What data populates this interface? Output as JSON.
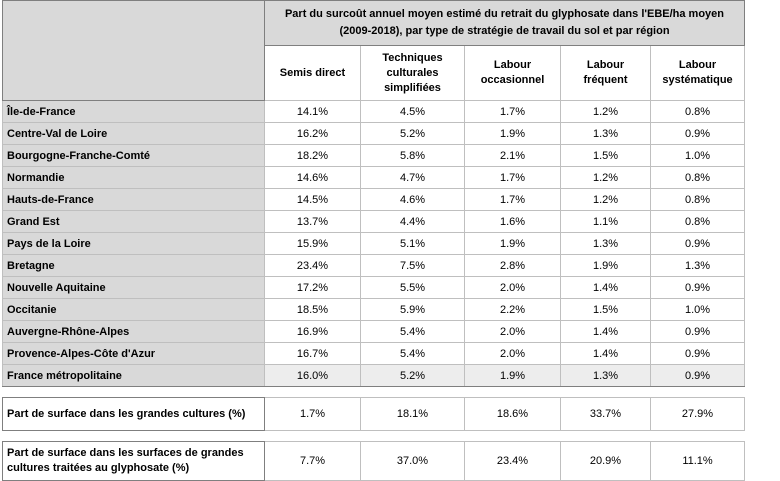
{
  "table": {
    "title": "Part du surcoût annuel moyen estimé du retrait du glyphosate dans l'EBE/ha moyen (2009-2018), par type de stratégie de travail du sol et par région",
    "columns": [
      "Semis direct",
      "Techniques culturales simplifiées",
      "Labour occasionnel",
      "Labour fréquent",
      "Labour systématique"
    ],
    "rows": [
      {
        "label": "Île-de-France",
        "values": [
          "14.1%",
          "4.5%",
          "1.7%",
          "1.2%",
          "0.8%"
        ]
      },
      {
        "label": "Centre-Val de Loire",
        "values": [
          "16.2%",
          "5.2%",
          "1.9%",
          "1.3%",
          "0.9%"
        ]
      },
      {
        "label": "Bourgogne-Franche-Comté",
        "values": [
          "18.2%",
          "5.8%",
          "2.1%",
          "1.5%",
          "1.0%"
        ]
      },
      {
        "label": "Normandie",
        "values": [
          "14.6%",
          "4.7%",
          "1.7%",
          "1.2%",
          "0.8%"
        ]
      },
      {
        "label": "Hauts-de-France",
        "values": [
          "14.5%",
          "4.6%",
          "1.7%",
          "1.2%",
          "0.8%"
        ]
      },
      {
        "label": "Grand Est",
        "values": [
          "13.7%",
          "4.4%",
          "1.6%",
          "1.1%",
          "0.8%"
        ]
      },
      {
        "label": "Pays de la Loire",
        "values": [
          "15.9%",
          "5.1%",
          "1.9%",
          "1.3%",
          "0.9%"
        ]
      },
      {
        "label": "Bretagne",
        "values": [
          "23.4%",
          "7.5%",
          "2.8%",
          "1.9%",
          "1.3%"
        ]
      },
      {
        "label": "Nouvelle Aquitaine",
        "values": [
          "17.2%",
          "5.5%",
          "2.0%",
          "1.4%",
          "0.9%"
        ]
      },
      {
        "label": "Occitanie",
        "values": [
          "18.5%",
          "5.9%",
          "2.2%",
          "1.5%",
          "1.0%"
        ]
      },
      {
        "label": "Auvergne-Rhône-Alpes",
        "values": [
          "16.9%",
          "5.4%",
          "2.0%",
          "1.4%",
          "0.9%"
        ]
      },
      {
        "label": "Provence-Alpes-Côte d'Azur",
        "values": [
          "16.7%",
          "5.4%",
          "2.0%",
          "1.4%",
          "0.9%"
        ]
      }
    ],
    "france": {
      "label": "France métropolitaine",
      "values": [
        "16.0%",
        "5.2%",
        "1.9%",
        "1.3%",
        "0.9%"
      ]
    },
    "footer_rows": [
      {
        "label": "Part de surface dans les grandes cultures (%)",
        "values": [
          "1.7%",
          "18.1%",
          "18.6%",
          "33.7%",
          "27.9%"
        ]
      },
      {
        "label": "Part de surface dans les surfaces de grandes cultures traitées au glyphosate (%)",
        "values": [
          "7.7%",
          "37.0%",
          "23.4%",
          "20.9%",
          "11.1%"
        ]
      }
    ]
  }
}
